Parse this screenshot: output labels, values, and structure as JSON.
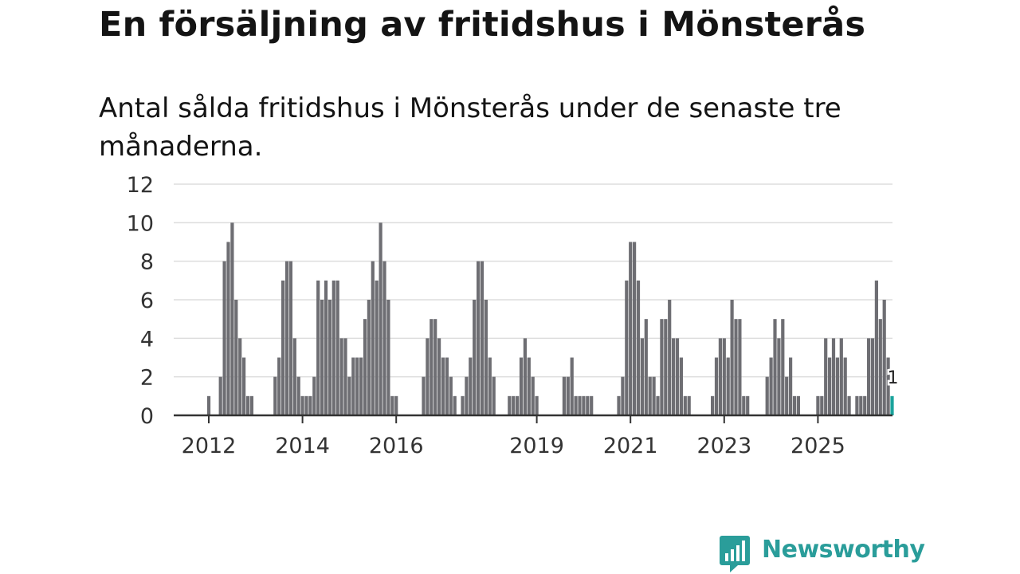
{
  "title": "En försäljning av fritidshus i Mönsterås",
  "subtitle": "Antal sålda fritidshus i Mönsterås under de senaste tre månaderna.",
  "logo": {
    "text": "Newsworthy",
    "icon": "newsworthy-chart-bubble-icon"
  },
  "colors": {
    "bar": "#6e6e73",
    "highlight": "#1aa39c",
    "grid": "#dddddd",
    "axis": "#333333"
  },
  "chart_data": {
    "type": "bar",
    "x_unit": "quarter (rolling 3-month windows, monthly)",
    "start": "2012-01",
    "ylim": [
      0,
      12
    ],
    "yticks": [
      0,
      2,
      4,
      6,
      8,
      10,
      12
    ],
    "xtick_labels": [
      "2012",
      "2014",
      "2016",
      "2019",
      "2021",
      "2023",
      "2025"
    ],
    "xtick_months": [
      "2012-01",
      "2014-01",
      "2016-01",
      "2019-01",
      "2021-01",
      "2023-01",
      "2025-01"
    ],
    "grid": true,
    "values": [
      1,
      0,
      0,
      2,
      8,
      9,
      10,
      6,
      4,
      3,
      1,
      1,
      0,
      0,
      0,
      0,
      0,
      2,
      3,
      7,
      8,
      8,
      4,
      2,
      1,
      1,
      1,
      2,
      7,
      6,
      7,
      6,
      7,
      7,
      4,
      4,
      2,
      3,
      3,
      3,
      5,
      6,
      8,
      7,
      10,
      8,
      6,
      1,
      1,
      0,
      0,
      0,
      0,
      0,
      0,
      2,
      4,
      5,
      5,
      4,
      3,
      3,
      2,
      1,
      0,
      1,
      2,
      3,
      6,
      8,
      8,
      6,
      3,
      2,
      0,
      0,
      0,
      1,
      1,
      1,
      3,
      4,
      3,
      2,
      1,
      0,
      0,
      0,
      0,
      0,
      0,
      2,
      2,
      3,
      1,
      1,
      1,
      1,
      1,
      0,
      0,
      0,
      0,
      0,
      0,
      1,
      2,
      7,
      9,
      9,
      7,
      4,
      5,
      2,
      2,
      1,
      5,
      5,
      6,
      4,
      4,
      3,
      1,
      1,
      0,
      0,
      0,
      0,
      0,
      1,
      3,
      4,
      4,
      3,
      6,
      5,
      5,
      1,
      1,
      0,
      0,
      0,
      0,
      2,
      3,
      5,
      4,
      5,
      2,
      3,
      1,
      1,
      0,
      0,
      0,
      0,
      1,
      1,
      4,
      3,
      4,
      3,
      4,
      3,
      1,
      0,
      1,
      1,
      1,
      4,
      4,
      7,
      5,
      6,
      3,
      1
    ],
    "highlight_last": true,
    "last_label": "1"
  }
}
